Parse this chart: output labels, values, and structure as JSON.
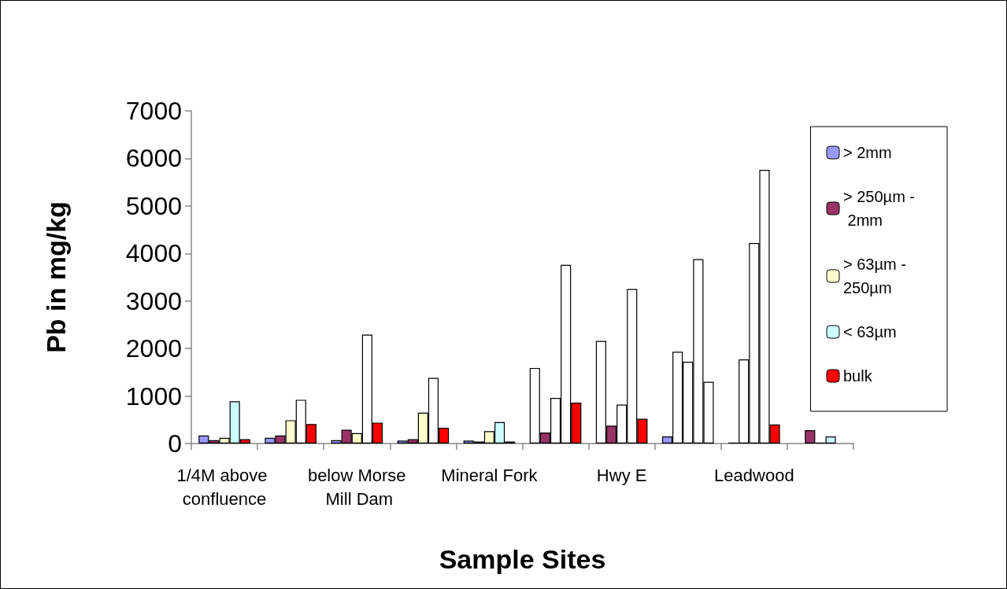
{
  "chart_data": {
    "type": "bar",
    "xlabel": "Sample Sites",
    "ylabel": "Pb in mg/kg",
    "categories": [
      "1/4M above confluence",
      null,
      "below Morse Mill Dam",
      null,
      "Mineral Fork",
      null,
      "Hwy E",
      null,
      "Leadwood",
      null
    ],
    "series": [
      {
        "name": "> 2mm",
        "color": "#9999ff",
        "values": [
          170,
          120,
          70,
          60,
          60,
          1590,
          2160,
          150,
          20,
          null
        ],
        "colors": [
          "#9999ff",
          "#9999ff",
          "#9999ff",
          "#9999ff",
          "#9999ff",
          "#ffffff",
          "#ffffff",
          "#9999ff",
          "#ffffff",
          "#9999ff"
        ]
      },
      {
        "name": "> 250µm - 2mm",
        "color": "#993366",
        "values": [
          70,
          170,
          290,
          90,
          40,
          230,
          375,
          1930,
          1770,
          280
        ],
        "colors": [
          "#993366",
          "#993366",
          "#993366",
          "#993366",
          "#993366",
          "#993366",
          "#993366",
          "#ffffff",
          "#ffffff",
          "#993366"
        ]
      },
      {
        "name": "> 63µm - 250µm",
        "color": "#ffffcc",
        "values": [
          120,
          490,
          220,
          650,
          260,
          960,
          820,
          1720,
          4220,
          20
        ],
        "colors": [
          "#ffffcc",
          "#ffffcc",
          "#ffffcc",
          "#ffffcc",
          "#ffffcc",
          "#ffffff",
          "#ffffff",
          "#ffffff",
          "#ffffff",
          "#ffffcc"
        ]
      },
      {
        "name": "< 63µm",
        "color": "#ccffff",
        "values": [
          890,
          920,
          2290,
          1380,
          450,
          3760,
          3250,
          3880,
          5760,
          150
        ],
        "colors": [
          "#ccffff",
          "#ffffff",
          "#ffffff",
          "#ffffff",
          "#ccffff",
          "#ffffff",
          "#ffffff",
          "#ffffff",
          "#ffffff",
          "#ccffff"
        ]
      },
      {
        "name": "bulk",
        "color": "#ff0000",
        "values": [
          90,
          410,
          440,
          330,
          40,
          860,
          520,
          1300,
          400,
          null
        ],
        "colors": [
          "#ff0000",
          "#ff0000",
          "#ff0000",
          "#ff0000",
          "#ff0000",
          "#ff0000",
          "#ff0000",
          "#ffffff",
          "#ff0000",
          "#ff0000"
        ]
      }
    ],
    "ylim": [
      0,
      7000
    ],
    "yticks": [
      0,
      1000,
      2000,
      3000,
      4000,
      5000,
      6000,
      7000
    ],
    "grid": false,
    "legend": "right"
  }
}
